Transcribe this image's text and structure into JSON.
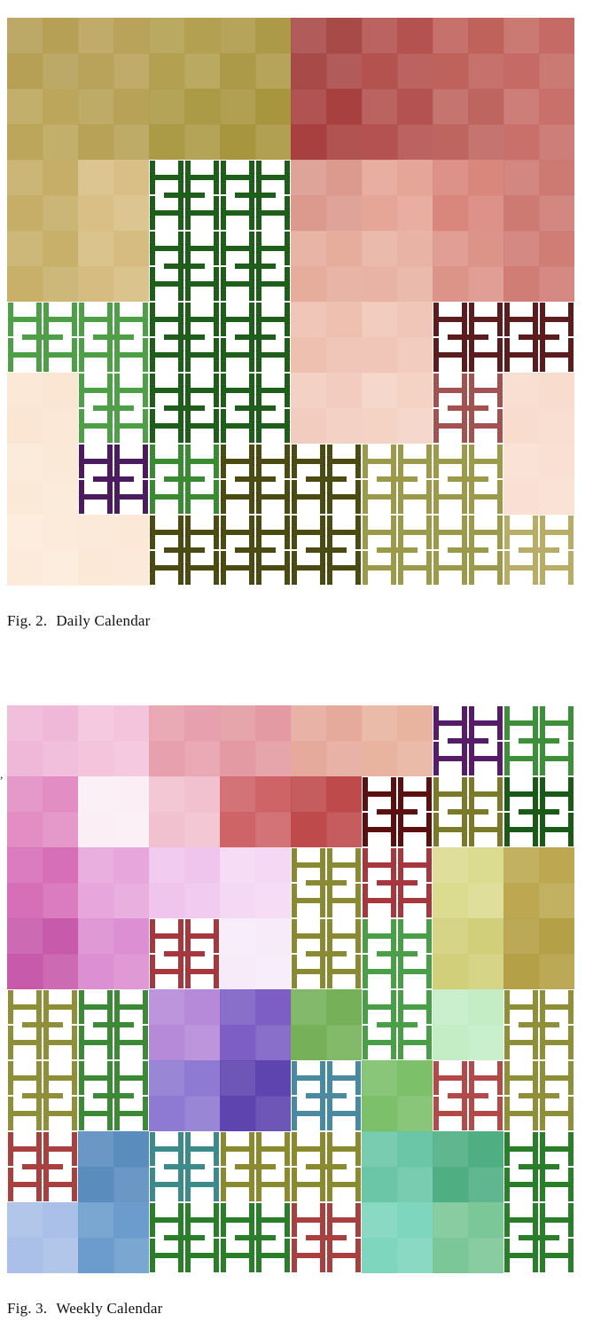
{
  "figures": [
    {
      "id": "fig2",
      "caption_number": "Fig. 2.",
      "caption_text": "Daily Calendar",
      "grid_cells": 8,
      "cells": [
        [
          "#b6a056",
          "#b9a25a",
          "#b3a050",
          "#ad9a48",
          "#a84a48",
          "#b4524f",
          "#c0625c",
          "#c56a64"
        ],
        [
          "#bca65c",
          "#b7a258",
          "#ab9a46",
          "#a8963f",
          "#a8403f",
          "#b35250",
          "#bf6560",
          "#c9706a"
        ],
        [
          "#c6ae68",
          "#d9bf86",
          "#e2cb9a",
          "#fff",
          "#dc9a8e",
          "#e5a597",
          "#d9867c",
          "#cd7a73"
        ],
        [
          "#c8b06a",
          "#d6bc80",
          "#fff",
          "#fff",
          "#e6ac9c",
          "#e8b2a4",
          "#dd9488",
          "#cf7d75"
        ],
        [
          "#fff",
          "#fff",
          "#fff",
          "#fff",
          "#eec0b0",
          "#f0c6b8",
          "#fff",
          "#fff"
        ],
        [
          "#fbe6d3",
          "#fff",
          "#fff",
          "#fff",
          "#f2cdbf",
          "#f4d3c5",
          "#fff",
          "#f8dccd"
        ],
        [
          "#fbe9d7",
          "#fff",
          "#fff",
          "#fff",
          "#fff",
          "#fff",
          "#fff",
          "#f9e0d2"
        ],
        [
          "#fcebdb",
          "#fbe8d6",
          "#fff",
          "#fff",
          "#fff",
          "#fff",
          "#fff",
          "#fff"
        ]
      ],
      "curves": [
        {
          "color": "#1e5e1a",
          "cells": [
            [
              2,
              2
            ],
            [
              3,
              2
            ],
            [
              2,
              3
            ],
            [
              3,
              3
            ],
            [
              4,
              2
            ],
            [
              5,
              2
            ],
            [
              4,
              3
            ],
            [
              5,
              3
            ]
          ]
        },
        {
          "color": "#4e9f48",
          "cells": [
            [
              4,
              0
            ],
            [
              4,
              1
            ],
            [
              5,
              1
            ]
          ]
        },
        {
          "color": "#3a8a34",
          "cells": [
            [
              6,
              1
            ],
            [
              6,
              2
            ],
            [
              6,
              3
            ]
          ]
        },
        {
          "color": "#5b1c1e",
          "cells": [
            [
              4,
              6
            ],
            [
              4,
              7
            ]
          ]
        },
        {
          "color": "#a25250",
          "cells": [
            [
              5,
              6
            ]
          ]
        },
        {
          "color": "#4c1a5e",
          "cells": [
            [
              6,
              1
            ]
          ]
        },
        {
          "color": "#4a4a12",
          "cells": [
            [
              7,
              2
            ],
            [
              6,
              3
            ],
            [
              7,
              3
            ],
            [
              6,
              4
            ],
            [
              7,
              4
            ]
          ]
        },
        {
          "color": "#9a9a4a",
          "cells": [
            [
              6,
              5
            ],
            [
              7,
              5
            ],
            [
              6,
              6
            ],
            [
              7,
              6
            ]
          ]
        },
        {
          "color": "#b8ac66",
          "cells": [
            [
              7,
              7
            ]
          ]
        }
      ]
    },
    {
      "id": "fig3",
      "caption_number": "Fig. 3.",
      "caption_text": "Weekly Calendar",
      "grid_cells": 8,
      "cells": [
        [
          "#f0b8d8",
          "#f4c4dd",
          "#e7a0ad",
          "#e39aa2",
          "#e5aa9c",
          "#e8b49f",
          "#f8e4d0",
          "#fff"
        ],
        [
          "#e28ec4",
          "#fbeef4",
          "#f2c1cf",
          "#cf6468",
          "#bf4a4c",
          "#efb8a6",
          "#fff",
          "#fff"
        ],
        [
          "#d66eb8",
          "#e7a6dc",
          "#efc5ee",
          "#f5d9f4",
          "#fff",
          "#eef5c6",
          "#dcdc90",
          "#bda851"
        ],
        [
          "#c75aab",
          "#dc8fd2",
          "#f0d6f4",
          "#f7ebfa",
          "#f4f8df",
          "#e7efb8",
          "#d2cf7a",
          "#b4a046"
        ],
        [
          "#e6e8f6",
          "#fff",
          "#b68ad8",
          "#7c5ec4",
          "#76b15a",
          "#86c06a",
          "#c4edc6",
          "#fff"
        ],
        [
          "#c8d0ef",
          "#fff",
          "#8e7ad2",
          "#5d44ae",
          "#62a84c",
          "#7cc06a",
          "#b9eac0",
          "#e8f8ea"
        ],
        [
          "#9fb2e2",
          "#5a8cbe",
          "#6ca8cc",
          "#e4f7fb",
          "#fff",
          "#6ac6a6",
          "#4fae82",
          "#fff"
        ],
        [
          "#aac0e8",
          "#6b9ccd",
          "#fff",
          "#fff",
          "#bff0e4",
          "#7dd6bd",
          "#7cc797",
          "#fff"
        ]
      ],
      "curves": [
        {
          "color": "#3e8f3a",
          "cells": [
            [
              0,
              7
            ],
            [
              1,
              7
            ]
          ]
        },
        {
          "color": "#1a5a18",
          "cells": [
            [
              1,
              7
            ]
          ]
        },
        {
          "color": "#7a7a2a",
          "cells": [
            [
              1,
              6
            ],
            [
              2,
              4
            ]
          ]
        },
        {
          "color": "#5a1010",
          "cells": [
            [
              1,
              5
            ]
          ]
        },
        {
          "color": "#561c68",
          "cells": [
            [
              0,
              6
            ]
          ]
        },
        {
          "color": "#8a8a34",
          "cells": [
            [
              2,
              4
            ],
            [
              3,
              4
            ]
          ]
        },
        {
          "color": "#a6373e",
          "cells": [
            [
              3,
              2
            ],
            [
              2,
              5
            ]
          ]
        },
        {
          "color": "#4a9e48",
          "cells": [
            [
              3,
              5
            ],
            [
              4,
              5
            ]
          ]
        },
        {
          "color": "#8f8f3a",
          "cells": [
            [
              4,
              0
            ],
            [
              5,
              0
            ],
            [
              4,
              7
            ],
            [
              5,
              7
            ]
          ]
        },
        {
          "color": "#3c8a38",
          "cells": [
            [
              4,
              1
            ],
            [
              5,
              1
            ]
          ]
        },
        {
          "color": "#4a8aa0",
          "cells": [
            [
              5,
              4
            ]
          ]
        },
        {
          "color": "#b24a4a",
          "cells": [
            [
              5,
              6
            ]
          ]
        },
        {
          "color": "#8a8a30",
          "cells": [
            [
              6,
              3
            ],
            [
              6,
              4
            ]
          ]
        },
        {
          "color": "#a84040",
          "cells": [
            [
              6,
              0
            ],
            [
              7,
              4
            ]
          ]
        },
        {
          "color": "#3c8a8a",
          "cells": [
            [
              6,
              2
            ]
          ]
        },
        {
          "color": "#2a7e2a",
          "cells": [
            [
              7,
              2
            ],
            [
              7,
              3
            ],
            [
              6,
              7
            ],
            [
              7,
              7
            ]
          ]
        }
      ]
    }
  ],
  "stray_mark": ","
}
